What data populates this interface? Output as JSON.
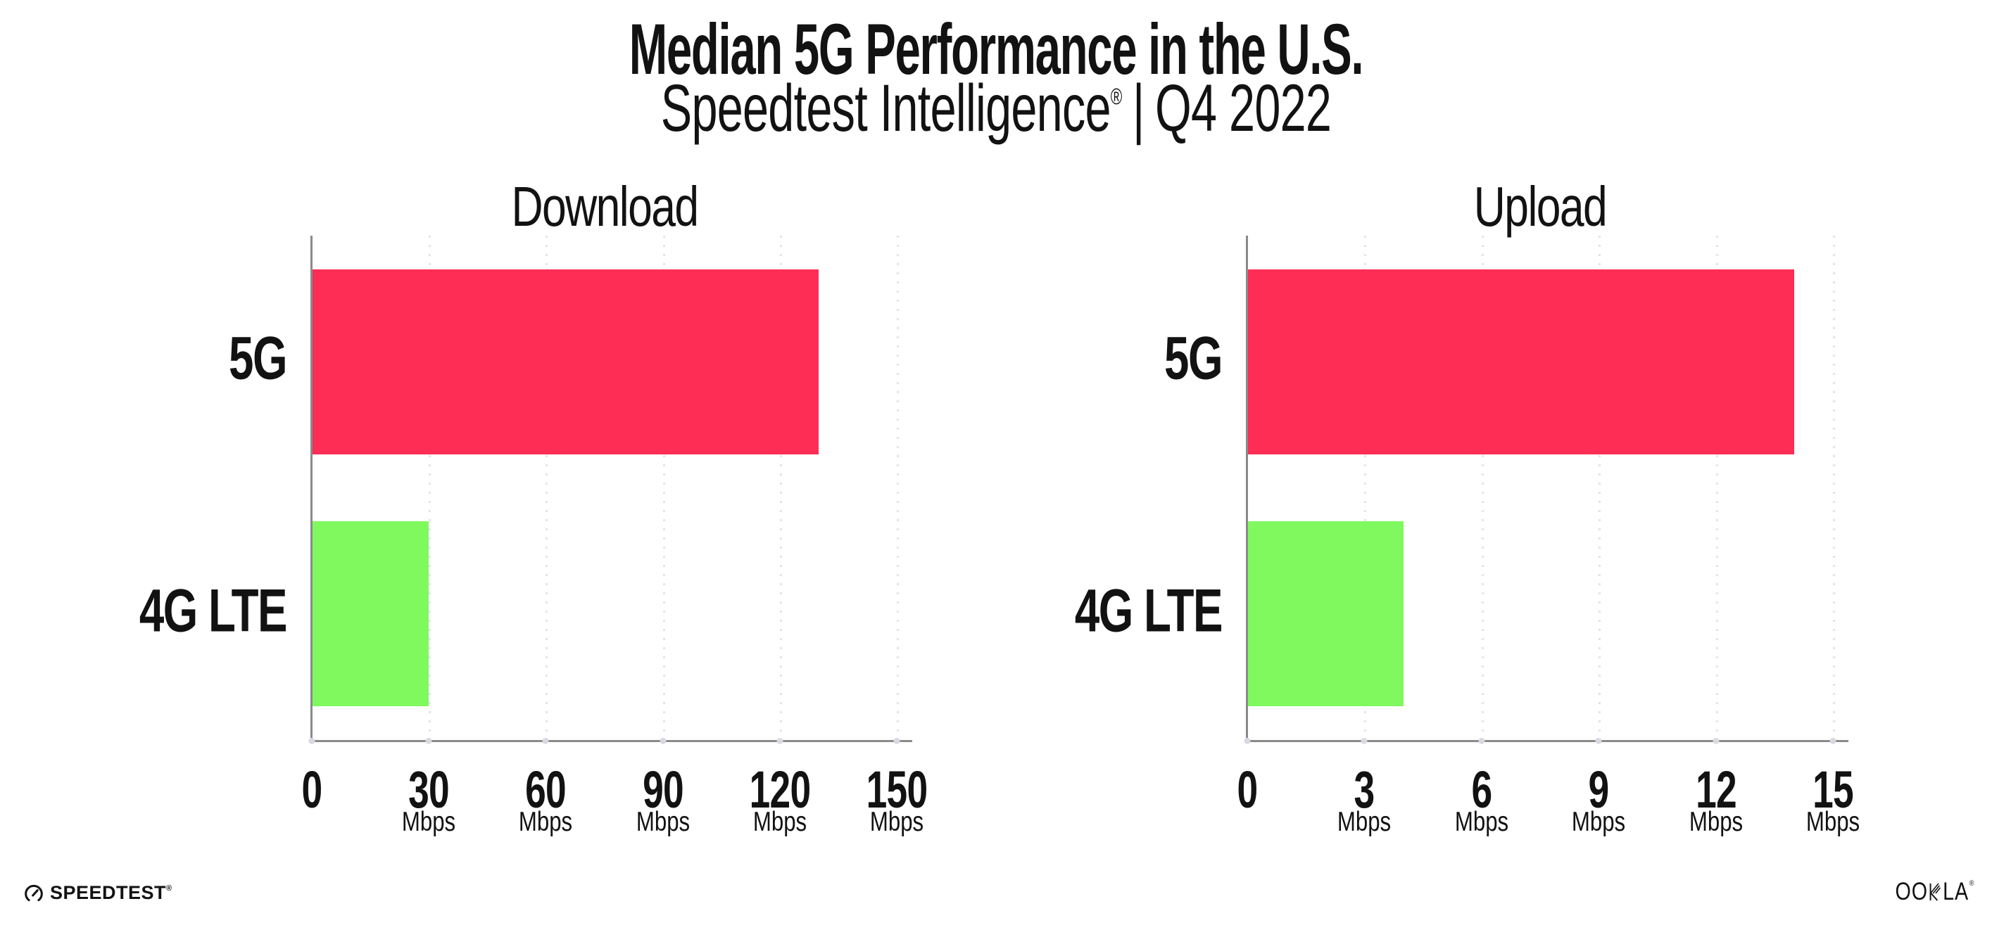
{
  "header": {
    "title": "Median 5G Performance in the U.S.",
    "subtitle_product": "Speedtest Intelligence",
    "subtitle_trademark": "®",
    "subtitle_separator": "|",
    "subtitle_period": "Q4 2022"
  },
  "chart_data": [
    {
      "type": "bar",
      "orientation": "horizontal",
      "title": "Download",
      "categories": [
        "5G",
        "4G LTE"
      ],
      "values": [
        130,
        30
      ],
      "unit": "Mbps",
      "xlim": [
        0,
        150
      ],
      "xticks": [
        0,
        30,
        60,
        90,
        120,
        150
      ],
      "bar_colors": [
        "#FD2D56",
        "#80F95E"
      ],
      "grid": "vertical-dotted",
      "legend": "none"
    },
    {
      "type": "bar",
      "orientation": "horizontal",
      "title": "Upload",
      "categories": [
        "5G",
        "4G LTE"
      ],
      "values": [
        14,
        4
      ],
      "unit": "Mbps",
      "xlim": [
        0,
        15
      ],
      "xticks": [
        0,
        3,
        6,
        9,
        12,
        15
      ],
      "bar_colors": [
        "#FD2D56",
        "#80F95E"
      ],
      "grid": "vertical-dotted",
      "legend": "none"
    }
  ],
  "footer": {
    "speedtest_logo_text": "SPEEDTEST",
    "speedtest_trademark": "®",
    "ookla_logo_text_left": "OO",
    "ookla_logo_text_right": "LA",
    "ookla_trademark": "®"
  },
  "colors": {
    "bar_5g": "#FD2D56",
    "bar_4g_lte": "#80F95E",
    "axis": "#8A8A8A",
    "gridline": "#E3E3EC",
    "text": "#121212",
    "background": "#FFFFFF"
  }
}
